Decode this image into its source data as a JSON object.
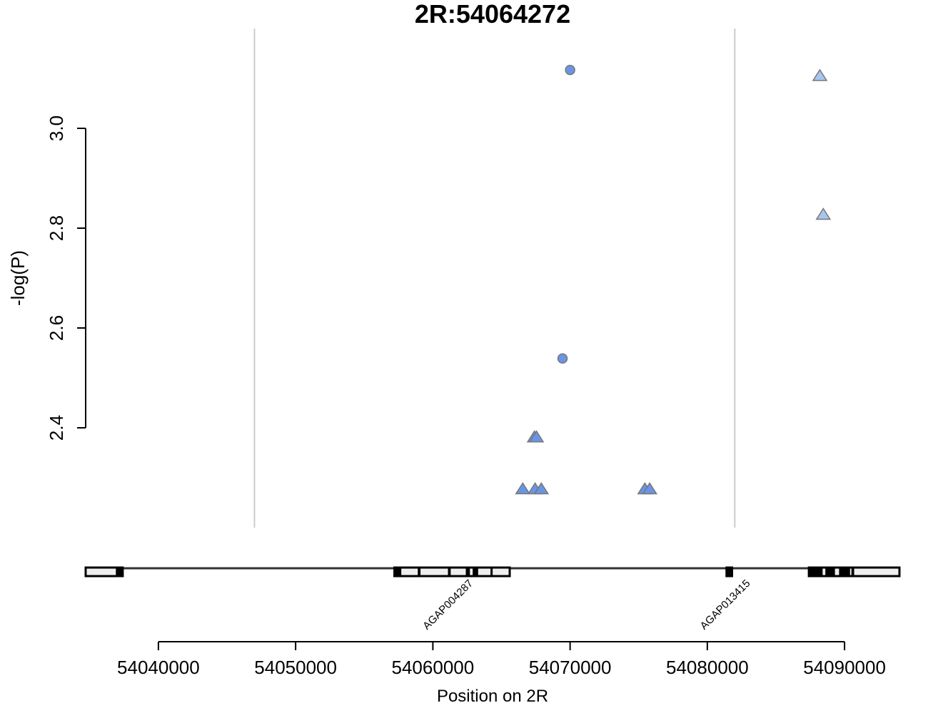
{
  "chart_data": {
    "type": "scatter",
    "title": "2R:54064272",
    "ylabel": "-log(P)",
    "xlabel": "Position on 2R",
    "xlim": [
      54034700,
      54094000
    ],
    "ylim": [
      2.2,
      3.2
    ],
    "yticks": [
      2.4,
      2.6,
      2.8,
      3.0
    ],
    "xticks": [
      54040000,
      54050000,
      54060000,
      54070000,
      54080000,
      54090000
    ],
    "xtick_labels": [
      "54040000",
      "54050000",
      "54060000",
      "54070000",
      "54080000",
      "54090000"
    ],
    "vlines": [
      54047000,
      54082000
    ],
    "colors": {
      "dark": "#6a95e6",
      "light": "#a7c5f0",
      "stroke": "#777777",
      "vline": "#cccccc"
    },
    "points": [
      {
        "x": 54070000,
        "y": 3.117,
        "shape": "circle",
        "color": "dark"
      },
      {
        "x": 54069450,
        "y": 2.539,
        "shape": "circle",
        "color": "dark"
      },
      {
        "x": 54088200,
        "y": 3.104,
        "shape": "triangle",
        "color": "light"
      },
      {
        "x": 54088450,
        "y": 2.826,
        "shape": "triangle",
        "color": "light"
      },
      {
        "x": 54067400,
        "y": 2.38,
        "shape": "triangle",
        "color": "dark"
      },
      {
        "x": 54067550,
        "y": 2.38,
        "shape": "triangle",
        "color": "dark"
      },
      {
        "x": 54066550,
        "y": 2.276,
        "shape": "triangle",
        "color": "dark"
      },
      {
        "x": 54067450,
        "y": 2.276,
        "shape": "triangle",
        "color": "dark"
      },
      {
        "x": 54067900,
        "y": 2.276,
        "shape": "triangle",
        "color": "dark"
      },
      {
        "x": 54075450,
        "y": 2.276,
        "shape": "triangle",
        "color": "dark"
      },
      {
        "x": 54075800,
        "y": 2.276,
        "shape": "triangle",
        "color": "dark"
      }
    ],
    "genes": [
      {
        "name": "",
        "start": 54034700,
        "end": 54037400,
        "exons": [
          [
            54036900,
            54037400
          ]
        ]
      },
      {
        "name": "AGAP004287",
        "start": 54057200,
        "end": 54065600,
        "exons": [
          [
            54057200,
            54057700
          ],
          [
            54058900,
            54059100
          ],
          [
            54061100,
            54061300
          ],
          [
            54062400,
            54062700
          ],
          [
            54062900,
            54063300
          ],
          [
            54064200,
            54064300
          ]
        ]
      },
      {
        "name": "AGAP013415",
        "start": 54081400,
        "end": 54081800,
        "exons": [
          [
            54081400,
            54081800
          ]
        ]
      },
      {
        "name": "",
        "start": 54087400,
        "end": 54094000,
        "exons": [
          [
            54087400,
            54088400
          ],
          [
            54088600,
            54089300
          ],
          [
            54089600,
            54090400
          ],
          [
            54090500,
            54090700
          ]
        ]
      }
    ]
  }
}
